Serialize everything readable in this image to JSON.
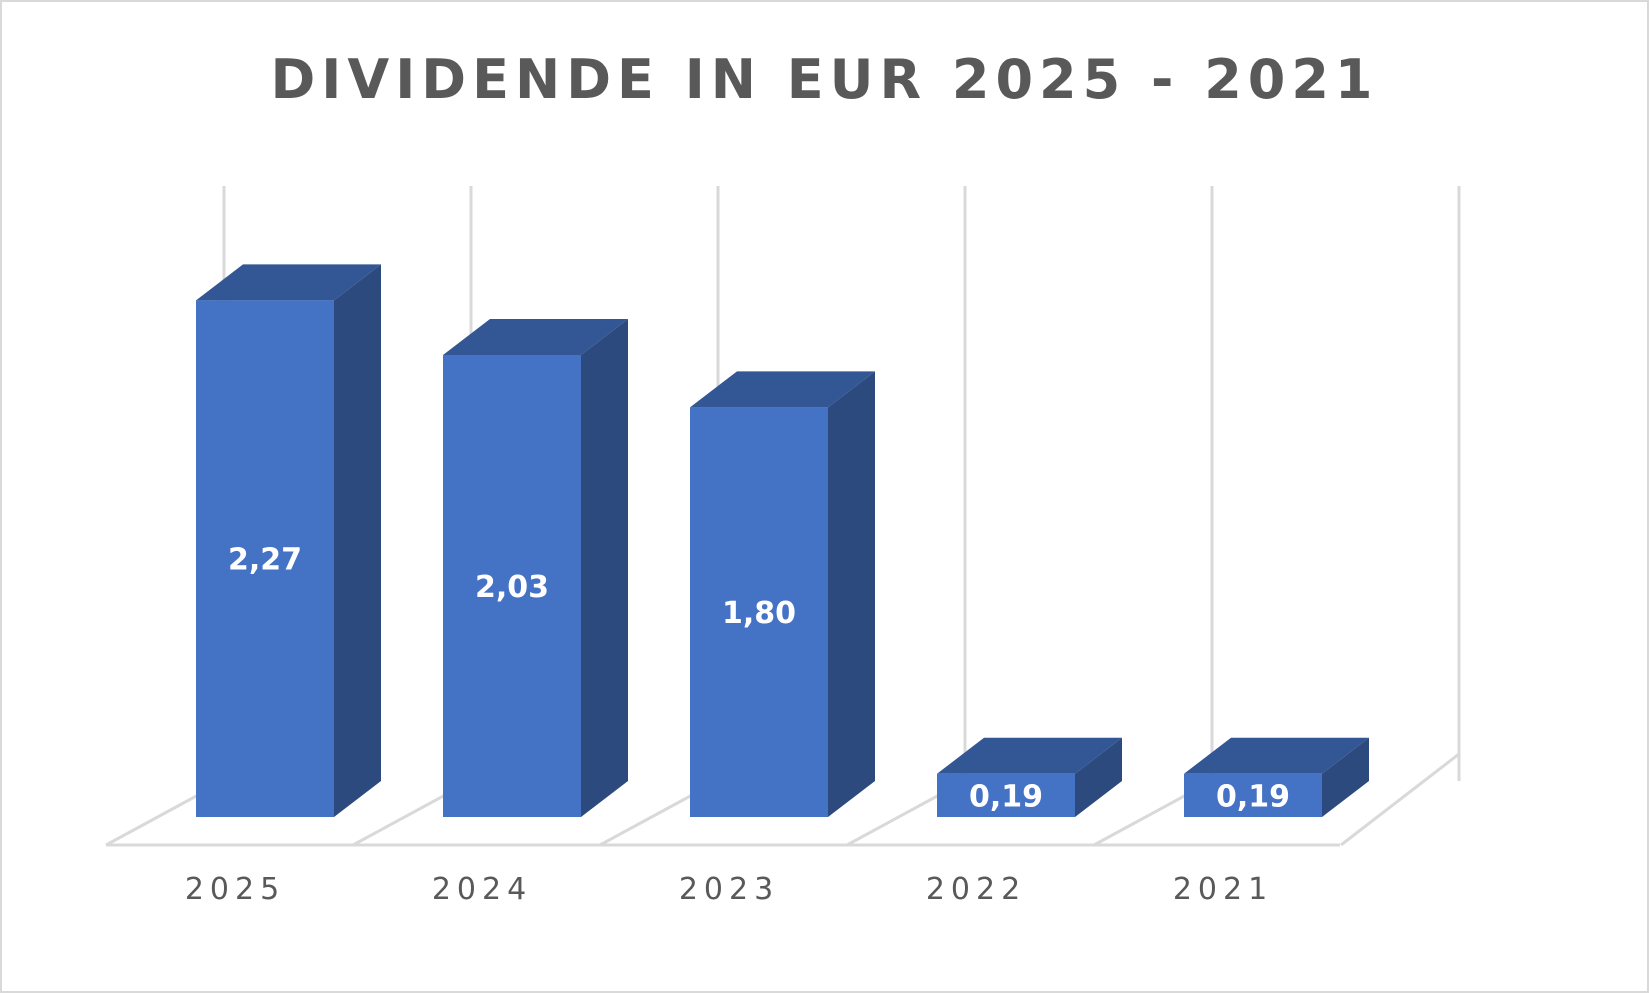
{
  "chart_data": {
    "type": "bar",
    "title": "DIVIDENDE IN EUR 2025 - 2021",
    "categories": [
      "2025",
      "2024",
      "2023",
      "2022",
      "2021"
    ],
    "values": [
      2.27,
      2.03,
      1.8,
      0.19,
      0.19
    ],
    "data_labels": [
      "2,27",
      "2,03",
      "1,80",
      "0,19",
      "0,19"
    ],
    "xlabel": "",
    "ylabel": "",
    "ylim": [
      0,
      2.5
    ],
    "grid": true,
    "legend": "none",
    "style": "3d-column"
  },
  "colors": {
    "bar_front": "#4472c4",
    "bar_top": "#335694",
    "bar_side": "#2d4a7f",
    "grid": "#d9d9d9",
    "text": "#595959",
    "label": "#ffffff"
  }
}
